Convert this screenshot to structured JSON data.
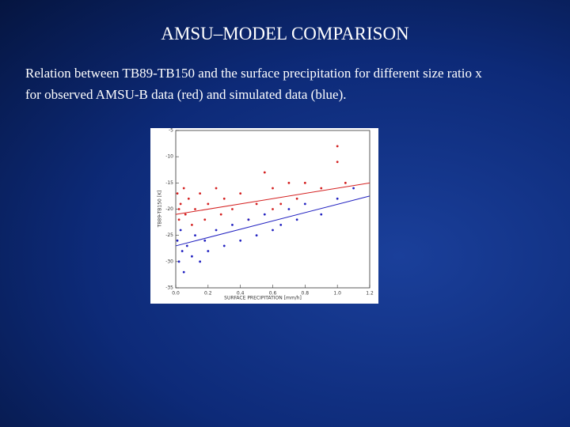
{
  "title": "AMSU–MODEL COMPARISON",
  "body": [
    "Relation between TB89-TB150 and the surface precipitation for different size ratio x",
    "for observed AMSU-B data (red) and simulated data (blue)."
  ],
  "chart_data": {
    "type": "scatter",
    "x_label": "SURFACE PRECIPITATION [mm/h]",
    "y_label": "TB89-TB150 [K]",
    "xlim": [
      0,
      1.2
    ],
    "ylim": [
      -35,
      -5
    ],
    "xticks": [
      {
        "value": 0,
        "label": "0.0"
      },
      {
        "value": 0.2,
        "label": "0.2"
      },
      {
        "value": 0.4,
        "label": "0.4"
      },
      {
        "value": 0.6,
        "label": "0.6"
      },
      {
        "value": 0.8,
        "label": "0.8"
      },
      {
        "value": 1,
        "label": "1.0"
      },
      {
        "value": 1.2,
        "label": "1.2"
      }
    ],
    "yticks": [
      -35,
      -30,
      -25,
      -20,
      -15,
      -10,
      -5
    ],
    "series": [
      {
        "color": "#d42020",
        "x": [
          0.01,
          0.02,
          0.02,
          0.03,
          0.05,
          0.06,
          0.08,
          0.1,
          0.12,
          0.15,
          0.18,
          0.2,
          0.25,
          0.28,
          0.3,
          0.35,
          0.4,
          0.45,
          0.5,
          0.55,
          0.6,
          0.65,
          0.7,
          0.75,
          0.8,
          0.9,
          1.0,
          1.0,
          1.05,
          0.6
        ],
        "values": [
          -17,
          -20,
          -22,
          -19,
          -16,
          -21,
          -18,
          -23,
          -20,
          -17,
          -22,
          -19,
          -16,
          -21,
          -18,
          -20,
          -17,
          -22,
          -19,
          -13,
          -16,
          -19,
          -15,
          -18,
          -15,
          -16,
          -8,
          -11,
          -15,
          -20
        ],
        "fit_line": {
          "x": [
            0,
            1.2
          ],
          "values": [
            -21,
            -15
          ]
        }
      },
      {
        "color": "#2020c0",
        "x": [
          0.01,
          0.02,
          0.03,
          0.04,
          0.05,
          0.07,
          0.1,
          0.12,
          0.15,
          0.18,
          0.2,
          0.25,
          0.3,
          0.35,
          0.4,
          0.45,
          0.5,
          0.55,
          0.6,
          0.7,
          0.75,
          0.8,
          0.9,
          1.0,
          1.1,
          0.65
        ],
        "values": [
          -26,
          -30,
          -24,
          -28,
          -32,
          -27,
          -29,
          -25,
          -30,
          -26,
          -28,
          -24,
          -27,
          -23,
          -26,
          -22,
          -25,
          -21,
          -24,
          -20,
          -22,
          -19,
          -21,
          -18,
          -16,
          -23
        ],
        "fit_line": {
          "x": [
            0,
            1.2
          ],
          "values": [
            -27,
            -17.5
          ]
        }
      }
    ]
  }
}
